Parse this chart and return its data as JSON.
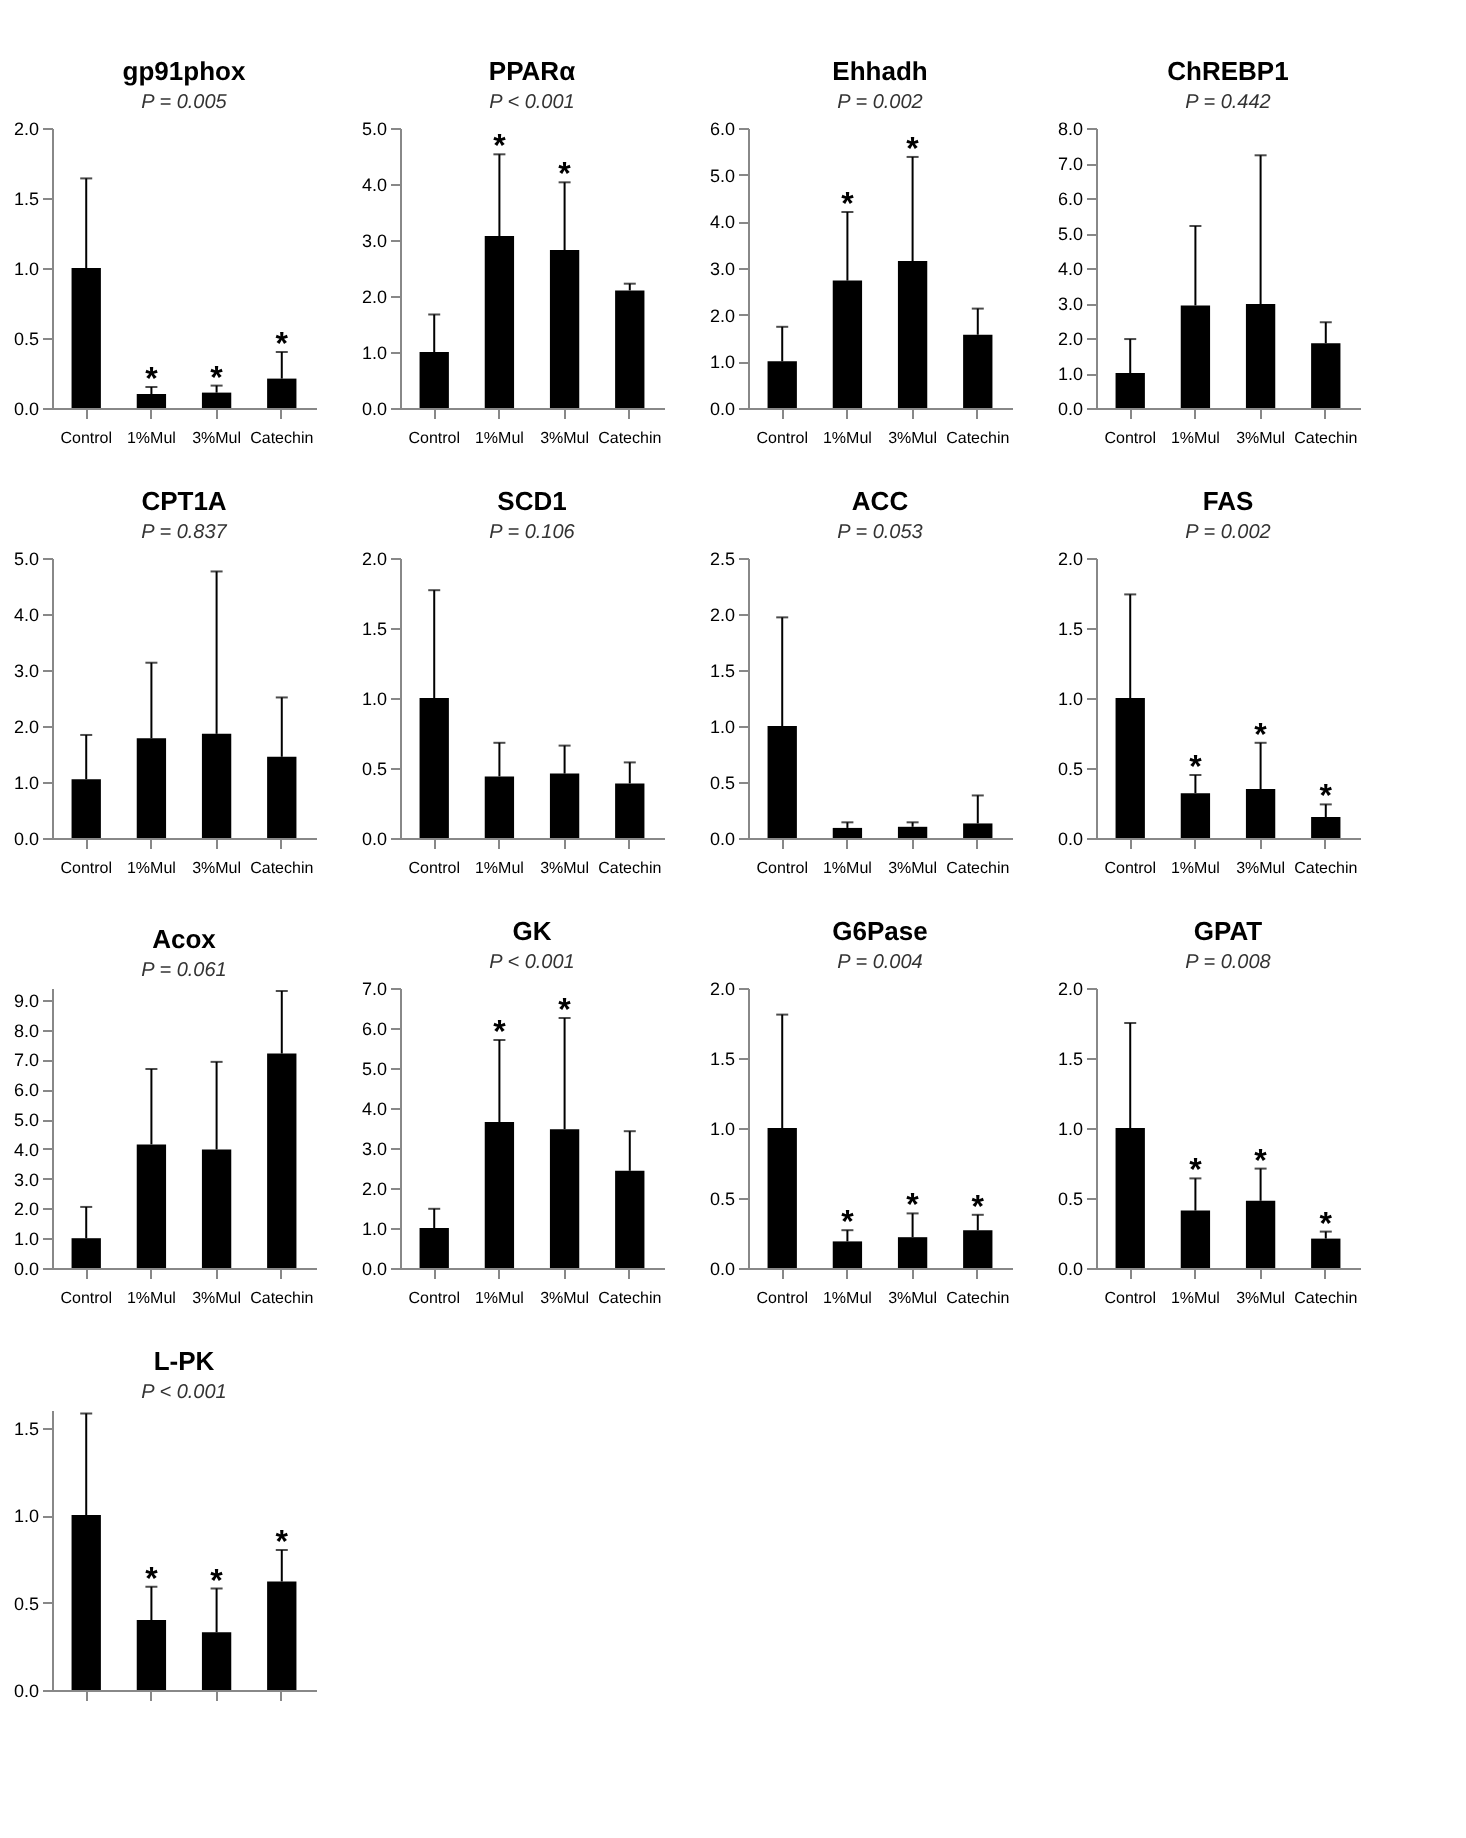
{
  "chart_data": [
    {
      "type": "bar",
      "title": "gp91phox",
      "subtitle": "P = 0.005",
      "categories": [
        "Control",
        "1%Mul",
        "3%Mul",
        "Catechin"
      ],
      "color": "#000000",
      "values": [
        1.0,
        0.1,
        0.11,
        0.21
      ],
      "errors": [
        [
          1.0,
          1.64
        ],
        [
          0.1,
          0.15
        ],
        [
          0.11,
          0.16
        ],
        [
          0.21,
          0.4
        ]
      ],
      "value_labels": [
        null,
        "*",
        "*",
        "*"
      ],
      "ylim": [
        0,
        2
      ],
      "yticks": [
        {
          "value": 0,
          "label": "0.0"
        },
        0.5,
        {
          "value": 1,
          "label": "1.0"
        },
        1.5,
        {
          "value": 2,
          "label": "2.0"
        }
      ],
      "grid": false
    },
    {
      "type": "bar",
      "title": "PPARα",
      "subtitle": "P < 0.001",
      "categories": [
        "Control",
        "1%Mul",
        "3%Mul",
        "Catechin"
      ],
      "color": "#000000",
      "values": [
        1.0,
        3.07,
        2.82,
        2.1
      ],
      "errors": [
        [
          1.0,
          1.67
        ],
        [
          3.07,
          4.53
        ],
        [
          2.82,
          4.03
        ],
        [
          2.1,
          2.22
        ]
      ],
      "value_labels": [
        null,
        "*",
        "*",
        null
      ],
      "ylim": [
        0,
        5
      ],
      "yticks": [
        {
          "value": 0,
          "label": "0.0"
        },
        {
          "value": 1,
          "label": "1.0"
        },
        {
          "value": 2,
          "label": "2.0"
        },
        {
          "value": 3,
          "label": "3.0"
        },
        {
          "value": 4,
          "label": "4.0"
        },
        {
          "value": 5,
          "label": "5.0"
        }
      ],
      "grid": false
    },
    {
      "type": "bar",
      "title": "Ehhadh",
      "subtitle": "P = 0.002",
      "categories": [
        "Control",
        "1%Mul",
        "3%Mul",
        "Catechin"
      ],
      "color": "#000000",
      "values": [
        1.0,
        2.73,
        3.15,
        1.57
      ],
      "errors": [
        [
          1.0,
          1.74
        ],
        [
          2.73,
          4.2
        ],
        [
          3.15,
          5.38
        ],
        [
          1.57,
          2.13
        ]
      ],
      "value_labels": [
        null,
        "*",
        "*",
        null
      ],
      "ylim": [
        0,
        6
      ],
      "yticks": [
        {
          "value": 0,
          "label": "0.0"
        },
        {
          "value": 1,
          "label": "1.0"
        },
        {
          "value": 2,
          "label": "2.0"
        },
        {
          "value": 3,
          "label": "3.0"
        },
        {
          "value": 4,
          "label": "4.0"
        },
        {
          "value": 5,
          "label": "5.0"
        },
        {
          "value": 6,
          "label": "6.0"
        }
      ],
      "grid": false
    },
    {
      "type": "bar",
      "title": "ChREBP1",
      "subtitle": "P = 0.442",
      "categories": [
        "Control",
        "1%Mul",
        "3%Mul",
        "Catechin"
      ],
      "color": "#000000",
      "values": [
        1.0,
        2.93,
        2.97,
        1.85
      ],
      "errors": [
        [
          1.0,
          1.97
        ],
        [
          2.93,
          5.2
        ],
        [
          2.97,
          7.22
        ],
        [
          1.85,
          2.45
        ]
      ],
      "ylim": [
        0,
        8
      ],
      "yticks": [
        {
          "value": 0,
          "label": "0.0"
        },
        {
          "value": 1,
          "label": "1.0"
        },
        {
          "value": 2,
          "label": "2.0"
        },
        {
          "value": 3,
          "label": "3.0"
        },
        {
          "value": 4,
          "label": "4.0"
        },
        {
          "value": 5,
          "label": "5.0"
        },
        {
          "value": 6,
          "label": "6.0"
        },
        {
          "value": 7,
          "label": "7.0"
        },
        {
          "value": 8,
          "label": "8.0"
        }
      ],
      "grid": false
    },
    {
      "type": "bar",
      "title": "CPT1A",
      "subtitle": "P = 0.837",
      "categories": [
        "Control",
        "1%Mul",
        "3%Mul",
        "Catechin"
      ],
      "color": "#000000",
      "values": [
        1.05,
        1.78,
        1.86,
        1.45
      ],
      "errors": [
        [
          1.05,
          1.84
        ],
        [
          1.78,
          3.13
        ],
        [
          1.86,
          4.76
        ],
        [
          1.45,
          2.51
        ]
      ],
      "ylim": [
        0,
        5
      ],
      "yticks": [
        {
          "value": 0,
          "label": "0.0"
        },
        {
          "value": 1,
          "label": "1.0"
        },
        {
          "value": 2,
          "label": "2.0"
        },
        {
          "value": 3,
          "label": "3.0"
        },
        {
          "value": 4,
          "label": "4.0"
        },
        {
          "value": 5,
          "label": "5.0"
        }
      ],
      "grid": false
    },
    {
      "type": "bar",
      "title": "SCD1",
      "subtitle": "P = 0.106",
      "categories": [
        "Control",
        "1%Mul",
        "3%Mul",
        "Catechin"
      ],
      "color": "#000000",
      "values": [
        1.0,
        0.44,
        0.46,
        0.39
      ],
      "errors": [
        [
          1.0,
          1.77
        ],
        [
          0.44,
          0.68
        ],
        [
          0.46,
          0.66
        ],
        [
          0.39,
          0.54
        ]
      ],
      "ylim": [
        0,
        2
      ],
      "yticks": [
        {
          "value": 0,
          "label": "0.0"
        },
        0.5,
        {
          "value": 1,
          "label": "1.0"
        },
        1.5,
        {
          "value": 2,
          "label": "2.0"
        }
      ],
      "grid": false
    },
    {
      "type": "bar",
      "title": "ACC",
      "subtitle": "P = 0.053",
      "categories": [
        "Control",
        "1%Mul",
        "3%Mul",
        "Catechin"
      ],
      "color": "#000000",
      "values": [
        1.0,
        0.09,
        0.1,
        0.13
      ],
      "errors": [
        [
          1.0,
          1.97
        ],
        [
          0.09,
          0.14
        ],
        [
          0.1,
          0.14
        ],
        [
          0.13,
          0.38
        ]
      ],
      "ylim": [
        0,
        2.5
      ],
      "yticks": [
        {
          "value": 0,
          "label": "0.0"
        },
        0.5,
        {
          "value": 1,
          "label": "1.0"
        },
        1.5,
        {
          "value": 2,
          "label": "2.0"
        },
        2.5
      ],
      "grid": false
    },
    {
      "type": "bar",
      "title": "FAS",
      "subtitle": "P = 0.002",
      "categories": [
        "Control",
        "1%Mul",
        "3%Mul",
        "Catechin"
      ],
      "color": "#000000",
      "values": [
        1.0,
        0.32,
        0.35,
        0.15
      ],
      "errors": [
        [
          1.0,
          1.74
        ],
        [
          0.32,
          0.45
        ],
        [
          0.35,
          0.68
        ],
        [
          0.15,
          0.24
        ]
      ],
      "value_labels": [
        null,
        "*",
        "*",
        "*"
      ],
      "ylim": [
        0,
        2
      ],
      "yticks": [
        {
          "value": 0,
          "label": "0.0"
        },
        0.5,
        {
          "value": 1,
          "label": "1.0"
        },
        1.5,
        {
          "value": 2,
          "label": "2.0"
        }
      ],
      "grid": false
    },
    {
      "type": "bar",
      "title": "Acox",
      "subtitle": "P = 0.061",
      "categories": [
        "Control",
        "1%Mul",
        "3%Mul",
        "Catechin"
      ],
      "color": "#000000",
      "values": [
        1.0,
        4.15,
        3.98,
        7.2
      ],
      "errors": [
        [
          1.0,
          2.05
        ],
        [
          4.15,
          6.68
        ],
        [
          3.98,
          6.92
        ],
        [
          7.2,
          9.3
        ]
      ],
      "ylim": [
        0,
        9.4
      ],
      "yticks": [
        {
          "value": 0,
          "label": "0.0"
        },
        {
          "value": 1,
          "label": "1.0"
        },
        {
          "value": 2,
          "label": "2.0"
        },
        {
          "value": 3,
          "label": "3.0"
        },
        {
          "value": 4,
          "label": "4.0"
        },
        {
          "value": 5,
          "label": "5.0"
        },
        {
          "value": 6,
          "label": "6.0"
        },
        {
          "value": 7,
          "label": "7.0"
        },
        {
          "value": 8,
          "label": "8.0"
        },
        {
          "value": 9,
          "label": "9.0"
        }
      ],
      "grid": false
    },
    {
      "type": "bar",
      "title": "GK",
      "subtitle": "P < 0.001",
      "categories": [
        "Control",
        "1%Mul",
        "3%Mul",
        "Catechin"
      ],
      "color": "#000000",
      "values": [
        1.0,
        3.65,
        3.47,
        2.43
      ],
      "errors": [
        [
          1.0,
          1.48
        ],
        [
          3.65,
          5.7
        ],
        [
          3.47,
          6.25
        ],
        [
          2.43,
          3.42
        ]
      ],
      "value_labels": [
        null,
        "*",
        "*",
        null
      ],
      "ylim": [
        0,
        7
      ],
      "yticks": [
        {
          "value": 0,
          "label": "0.0"
        },
        {
          "value": 1,
          "label": "1.0"
        },
        {
          "value": 2,
          "label": "2.0"
        },
        {
          "value": 3,
          "label": "3.0"
        },
        {
          "value": 4,
          "label": "4.0"
        },
        {
          "value": 5,
          "label": "5.0"
        },
        {
          "value": 6,
          "label": "6.0"
        },
        {
          "value": 7,
          "label": "7.0"
        }
      ],
      "grid": false
    },
    {
      "type": "bar",
      "title": "G6Pase",
      "subtitle": "P = 0.004",
      "categories": [
        "Control",
        "1%Mul",
        "3%Mul",
        "Catechin"
      ],
      "color": "#000000",
      "values": [
        1.0,
        0.19,
        0.22,
        0.27
      ],
      "errors": [
        [
          1.0,
          1.81
        ],
        [
          0.19,
          0.27
        ],
        [
          0.22,
          0.39
        ],
        [
          0.27,
          0.38
        ]
      ],
      "value_labels": [
        null,
        "*",
        "*",
        "*"
      ],
      "ylim": [
        0,
        2
      ],
      "yticks": [
        {
          "value": 0,
          "label": "0.0"
        },
        0.5,
        {
          "value": 1,
          "label": "1.0"
        },
        1.5,
        {
          "value": 2,
          "label": "2.0"
        }
      ],
      "grid": false
    },
    {
      "type": "bar",
      "title": "GPAT",
      "subtitle": "P = 0.008",
      "categories": [
        "Control",
        "1%Mul",
        "3%Mul",
        "Catechin"
      ],
      "color": "#000000",
      "values": [
        1.0,
        0.41,
        0.48,
        0.21
      ],
      "errors": [
        [
          1.0,
          1.75
        ],
        [
          0.41,
          0.64
        ],
        [
          0.48,
          0.71
        ],
        [
          0.21,
          0.26
        ]
      ],
      "value_labels": [
        null,
        "*",
        "*",
        "*"
      ],
      "ylim": [
        0,
        2
      ],
      "yticks": [
        {
          "value": 0,
          "label": "0.0"
        },
        0.5,
        {
          "value": 1,
          "label": "1.0"
        },
        1.5,
        {
          "value": 2,
          "label": "2.0"
        }
      ],
      "grid": false
    },
    {
      "type": "bar",
      "title": "L-PK",
      "subtitle": "P < 0.001",
      "categories": [
        null,
        null,
        null,
        null
      ],
      "color": "#000000",
      "values": [
        1.0,
        0.4,
        0.33,
        0.62
      ],
      "errors": [
        [
          1.0,
          1.58
        ],
        [
          0.4,
          0.59
        ],
        [
          0.33,
          0.58
        ],
        [
          0.62,
          0.8
        ]
      ],
      "value_labels": [
        null,
        "*",
        "*",
        "*"
      ],
      "ylim": [
        0,
        1.6
      ],
      "yticks": [
        {
          "value": 0,
          "label": "0.0"
        },
        0.5,
        {
          "value": 1,
          "label": "1.0"
        },
        1.5
      ],
      "tick_labels": "y",
      "grid": false
    }
  ]
}
